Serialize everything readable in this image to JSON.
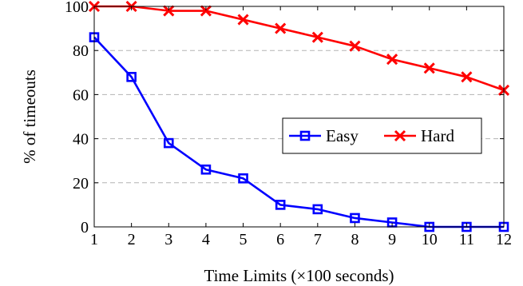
{
  "chart_data": {
    "type": "line",
    "title": "",
    "xlabel": "Time Limits (×100 seconds)",
    "ylabel": "% of timeouts",
    "x": [
      1,
      2,
      3,
      4,
      5,
      6,
      7,
      8,
      9,
      10,
      11,
      12
    ],
    "xlim": [
      1,
      12
    ],
    "ylim": [
      0,
      100
    ],
    "yticks": [
      0,
      20,
      40,
      60,
      80,
      100
    ],
    "grid": "horizontal-dashed",
    "legend_position": "center-right",
    "series": [
      {
        "name": "Easy",
        "color": "#0000ff",
        "marker": "square",
        "values": [
          86,
          68,
          38,
          26,
          22,
          10,
          8,
          4,
          2,
          0,
          0,
          0
        ]
      },
      {
        "name": "Hard",
        "color": "#ff0000",
        "marker": "x",
        "values": [
          100,
          100,
          98,
          98,
          94,
          90,
          86,
          82,
          76,
          72,
          68,
          62
        ]
      }
    ]
  }
}
